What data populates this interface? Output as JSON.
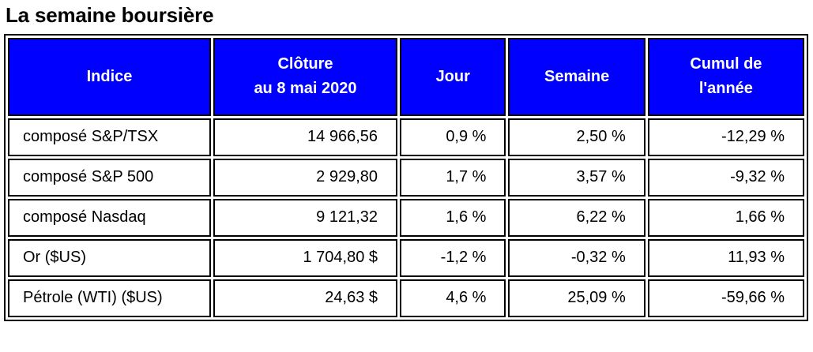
{
  "page": {
    "title": "La semaine boursière"
  },
  "colors": {
    "header_bg": "#0000ff",
    "header_text": "#ffffff",
    "border": "#000000",
    "body_text": "#000000",
    "page_bg": "#ffffff"
  },
  "table": {
    "header": {
      "indice": {
        "label": "Indice"
      },
      "cloture": {
        "line1": "Clôture",
        "line2": "au 8 mai 2020"
      },
      "jour": {
        "label": "Jour"
      },
      "semaine": {
        "label": "Semaine"
      },
      "cumul": {
        "line1": "Cumul de",
        "line2": "l'année"
      }
    },
    "rows": [
      {
        "indice": "composé S&P/TSX",
        "cloture": "14 966,56",
        "jour": "0,9 %",
        "semaine": "2,50 %",
        "cumul": "-12,29 %"
      },
      {
        "indice": "composé S&P 500",
        "cloture": "2 929,80",
        "jour": "1,7 %",
        "semaine": "3,57 %",
        "cumul": "-9,32 %"
      },
      {
        "indice": "composé Nasdaq",
        "cloture": "9 121,32",
        "jour": "1,6 %",
        "semaine": "6,22 %",
        "cumul": "1,66 %"
      },
      {
        "indice": "Or ($US)",
        "cloture": "1 704,80 $",
        "jour": "-1,2 %",
        "semaine": "-0,32 %",
        "cumul": "11,93 %"
      },
      {
        "indice": "Pétrole (WTI) ($US)",
        "cloture": "24,63 $",
        "jour": "4,6 %",
        "semaine": "25,09 %",
        "cumul": "-59,66 %"
      }
    ]
  },
  "chart_data": {
    "type": "table",
    "title": "La semaine boursière",
    "columns": [
      "Indice",
      "Clôture au 8 mai 2020",
      "Jour",
      "Semaine",
      "Cumul de l'année"
    ],
    "rows": [
      [
        "composé S&P/TSX",
        "14 966,56",
        "0,9 %",
        "2,50 %",
        "-12,29 %"
      ],
      [
        "composé S&P 500",
        "2 929,80",
        "1,7 %",
        "3,57 %",
        "-9,32 %"
      ],
      [
        "composé Nasdaq",
        "9 121,32",
        "1,6 %",
        "6,22 %",
        "1,66 %"
      ],
      [
        "Or ($US)",
        "1 704,80 $",
        "-1,2 %",
        "-0,32 %",
        "11,93 %"
      ],
      [
        "Pétrole (WTI) ($US)",
        "24,63 $",
        "4,6 %",
        "25,09 %",
        "-59,66 %"
      ]
    ],
    "layout": {
      "header_style": "blue background, white bold text",
      "grid": "double black borders",
      "numeric_alignment": "right"
    }
  }
}
